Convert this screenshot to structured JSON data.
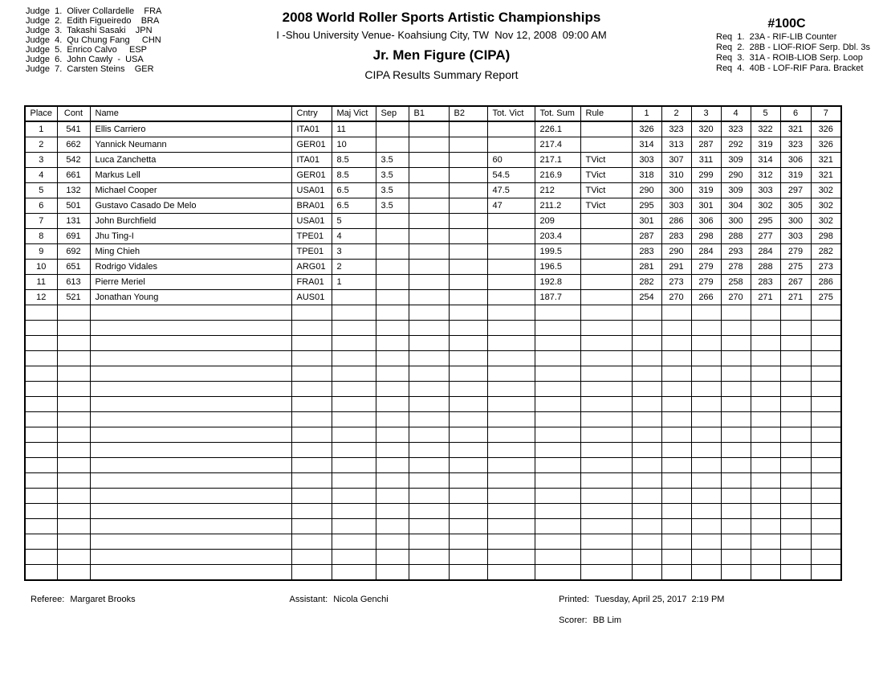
{
  "judges": {
    "lines": [
      "Judge  1.  Oliver Collardelle    FRA",
      "Judge  2.  Edith Figueiredo    BRA",
      "Judge  3.  Takashi Sasaki    JPN",
      "Judge  4.  Qu Chung Fang     CHN",
      "Judge  5.  Enrico Calvo     ESP",
      "Judge  6.  John Cawly  -  USA",
      "Judge  7.  Carsten Steins    GER"
    ]
  },
  "title": {
    "championship": "2008 World Roller Sports Artistic Championships",
    "venue_line": "I -Shou University Venue- Koahsiung City, TW  Nov 12, 2008  09:00 AM",
    "event": "Jr. Men Figure (CIPA)",
    "report": "CIPA Results Summary Report"
  },
  "heat": {
    "code": "#100C",
    "reqs": [
      "Req  1.  23A - RIF-LIB Counter",
      "Req  2.  28B - LIOF-RIOF Serp. Dbl. 3s",
      "Req  3.  31A - ROIB-LIOB Serp. Loop",
      "Req  4.  40B - LOF-RIF Para. Bracket"
    ]
  },
  "results_table": {
    "columns": [
      {
        "key": "place",
        "label": "Place"
      },
      {
        "key": "cont",
        "label": "Cont"
      },
      {
        "key": "name",
        "label": "Name"
      },
      {
        "key": "cntry",
        "label": "Cntry"
      },
      {
        "key": "maj_vict",
        "label": "Maj Vict"
      },
      {
        "key": "sep",
        "label": "Sep"
      },
      {
        "key": "b1",
        "label": "B1"
      },
      {
        "key": "b2",
        "label": "B2"
      },
      {
        "key": "tot_vict",
        "label": "Tot. Vict"
      },
      {
        "key": "tot_sum",
        "label": "Tot. Sum"
      },
      {
        "key": "rule",
        "label": "Rule"
      },
      {
        "key": "j1",
        "label": "1"
      },
      {
        "key": "j2",
        "label": "2"
      },
      {
        "key": "j3",
        "label": "3"
      },
      {
        "key": "j4",
        "label": "4"
      },
      {
        "key": "j5",
        "label": "5"
      },
      {
        "key": "j6",
        "label": "6"
      },
      {
        "key": "j7",
        "label": "7"
      }
    ],
    "rows": [
      [
        "1",
        "541",
        "Ellis Carriero",
        "ITA01",
        "11",
        "",
        "",
        "",
        "",
        "226.1",
        "",
        "326",
        "323",
        "320",
        "323",
        "322",
        "321",
        "326"
      ],
      [
        "2",
        "662",
        "Yannick Neumann",
        "GER01",
        "10",
        "",
        "",
        "",
        "",
        "217.4",
        "",
        "314",
        "313",
        "287",
        "292",
        "319",
        "323",
        "326"
      ],
      [
        "3",
        "542",
        "Luca Zanchetta",
        "ITA01",
        "8.5",
        "3.5",
        "",
        "",
        "60",
        "217.1",
        "TVict",
        "303",
        "307",
        "311",
        "309",
        "314",
        "306",
        "321"
      ],
      [
        "4",
        "661",
        "Markus Lell",
        "GER01",
        "8.5",
        "3.5",
        "",
        "",
        "54.5",
        "216.9",
        "TVict",
        "318",
        "310",
        "299",
        "290",
        "312",
        "319",
        "321"
      ],
      [
        "5",
        "132",
        "Michael Cooper",
        "USA01",
        "6.5",
        "3.5",
        "",
        "",
        "47.5",
        "212",
        "TVict",
        "290",
        "300",
        "319",
        "309",
        "303",
        "297",
        "302"
      ],
      [
        "6",
        "501",
        "Gustavo Casado De Melo",
        "BRA01",
        "6.5",
        "3.5",
        "",
        "",
        "47",
        "211.2",
        "TVict",
        "295",
        "303",
        "301",
        "304",
        "302",
        "305",
        "302"
      ],
      [
        "7",
        "131",
        "John Burchfield",
        "USA01",
        "5",
        "",
        "",
        "",
        "",
        "209",
        "",
        "301",
        "286",
        "306",
        "300",
        "295",
        "300",
        "302"
      ],
      [
        "8",
        "691",
        "Jhu Ting-I",
        "TPE01",
        "4",
        "",
        "",
        "",
        "",
        "203.4",
        "",
        "287",
        "283",
        "298",
        "288",
        "277",
        "303",
        "298"
      ],
      [
        "9",
        "692",
        "Ming Chieh",
        "TPE01",
        "3",
        "",
        "",
        "",
        "",
        "199.5",
        "",
        "283",
        "290",
        "284",
        "293",
        "284",
        "279",
        "282"
      ],
      [
        "10",
        "651",
        "Rodrigo Vidales",
        "ARG01",
        "2",
        "",
        "",
        "",
        "",
        "196.5",
        "",
        "281",
        "291",
        "279",
        "278",
        "288",
        "275",
        "273"
      ],
      [
        "11",
        "613",
        "Pierre Meriel",
        "FRA01",
        "1",
        "",
        "",
        "",
        "",
        "192.8",
        "",
        "282",
        "273",
        "279",
        "258",
        "283",
        "267",
        "286"
      ],
      [
        "12",
        "521",
        "Jonathan Young",
        "AUS01",
        "",
        "",
        "",
        "",
        "",
        "187.7",
        "",
        "254",
        "270",
        "266",
        "270",
        "271",
        "271",
        "275"
      ]
    ],
    "empty_row_count": 18
  },
  "footer": {
    "referee_label": "Referee:",
    "referee": "Margaret Brooks",
    "assistant_label": "Assistant:",
    "assistant": "Nicola Genchi",
    "printed_label": "Printed:",
    "printed": "Tuesday, April 25, 2017  2:19 PM",
    "scorer_label": "Scorer:",
    "scorer": "BB Lim"
  }
}
